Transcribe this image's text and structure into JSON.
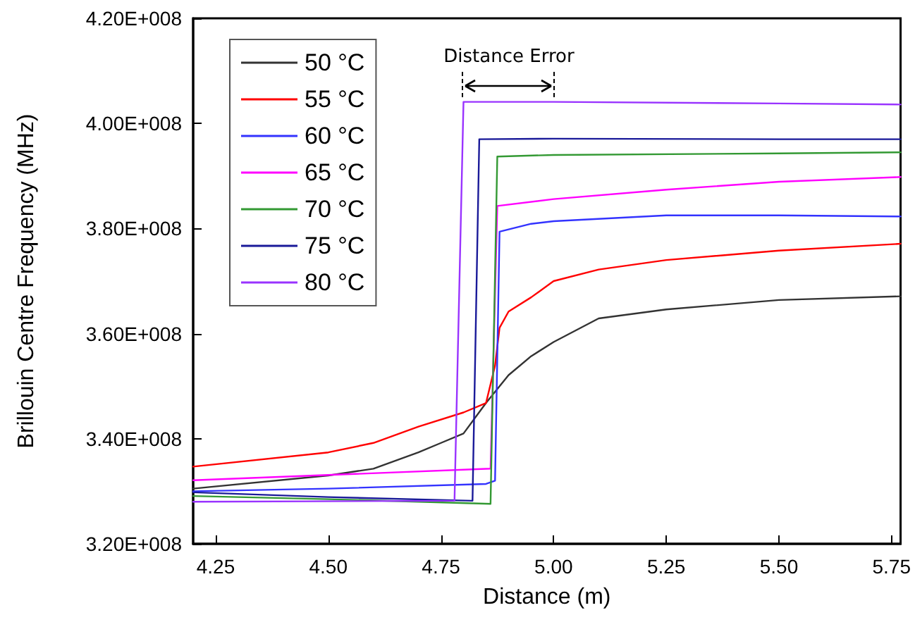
{
  "chart_data": {
    "type": "line",
    "xlabel": "Distance (m)",
    "ylabel": "Brillouin Centre Frequency (MHz)",
    "xlim": [
      4.2,
      5.77
    ],
    "xticks": [
      {
        "value": 4.25,
        "label": "4.25"
      },
      {
        "value": 4.5,
        "label": "4.50"
      },
      {
        "value": 4.75,
        "label": "4.75"
      },
      {
        "value": 5.0,
        "label": "5.00"
      },
      {
        "value": 5.25,
        "label": "5.25"
      },
      {
        "value": 5.5,
        "label": "5.50"
      },
      {
        "value": 5.75,
        "label": "5.75"
      }
    ],
    "ylim": [
      320000000,
      420000000
    ],
    "yticks": [
      {
        "value": 320000000,
        "label": "3.20E+008"
      },
      {
        "value": 340000000,
        "label": "3.40E+008"
      },
      {
        "value": 360000000,
        "label": "3.60E+008"
      },
      {
        "value": 380000000,
        "label": "3.80E+008"
      },
      {
        "value": 400000000,
        "label": "4.00E+008"
      },
      {
        "value": 420000000,
        "label": "4.20E+008"
      }
    ],
    "grid": false,
    "legend": "top left",
    "marker": "none",
    "line_style": "solid",
    "annotations": [
      "Distance Error"
    ],
    "series": [
      {
        "name": "50 °C",
        "color": "#333333",
        "x": [
          4.2,
          4.5,
          4.6,
          4.7,
          4.75,
          4.8,
          4.85,
          4.9,
          4.95,
          5.0,
          5.1,
          5.25,
          5.5,
          5.77
        ],
        "values": [
          330500000,
          333000000,
          334300000,
          337400000,
          339200000,
          341000000,
          346800000,
          352100000,
          355700000,
          358400000,
          362900000,
          364600000,
          366400000,
          367100000
        ]
      },
      {
        "name": "55 °C",
        "color": "#ff0000",
        "x": [
          4.2,
          4.5,
          4.6,
          4.7,
          4.8,
          4.85,
          4.87,
          4.88,
          4.9,
          4.95,
          5.0,
          5.1,
          5.25,
          5.5,
          5.77
        ],
        "values": [
          334700000,
          337400000,
          339200000,
          342300000,
          345000000,
          346800000,
          353900000,
          361100000,
          364200000,
          366900000,
          370000000,
          372200000,
          374000000,
          375800000,
          377100000
        ]
      },
      {
        "name": "60 °C",
        "color": "#3333ff",
        "x": [
          4.2,
          4.5,
          4.85,
          4.87,
          4.88,
          4.95,
          5.0,
          5.25,
          5.5,
          5.77
        ],
        "values": [
          330000000,
          330500000,
          331400000,
          332000000,
          379400000,
          380900000,
          381400000,
          382500000,
          382500000,
          382300000
        ]
      },
      {
        "name": "65 °C",
        "color": "#ff00ff",
        "x": [
          4.2,
          4.86,
          4.875,
          5.0,
          5.25,
          5.5,
          5.77
        ],
        "values": [
          332100000,
          334300000,
          384300000,
          385600000,
          387400000,
          388900000,
          389800000
        ]
      },
      {
        "name": "70 °C",
        "color": "#339933",
        "x": [
          4.2,
          4.5,
          4.86,
          4.875,
          5.0,
          5.5,
          5.77
        ],
        "values": [
          329100000,
          328500000,
          327600000,
          393700000,
          394000000,
          394300000,
          394500000
        ]
      },
      {
        "name": "75 °C",
        "color": "#1a1a99",
        "x": [
          4.2,
          4.5,
          4.82,
          4.835,
          5.0,
          5.5,
          5.77
        ],
        "values": [
          329800000,
          328900000,
          328200000,
          397000000,
          397100000,
          397000000,
          397000000
        ]
      },
      {
        "name": "80 °C",
        "color": "#9933ff",
        "x": [
          4.2,
          4.78,
          4.8,
          5.0,
          5.5,
          5.77
        ],
        "values": [
          328000000,
          328200000,
          404100000,
          404100000,
          403800000,
          403600000
        ]
      }
    ]
  }
}
